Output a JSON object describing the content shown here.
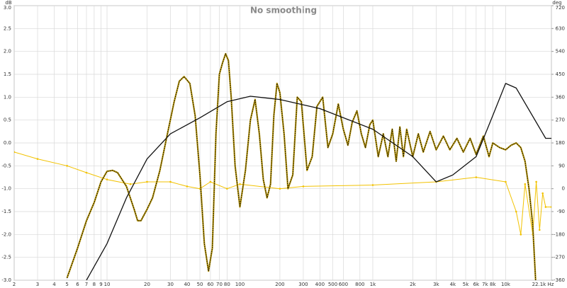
{
  "chart_data": {
    "type": "line",
    "title": "No smoothing",
    "ylabel": "dB",
    "y2label": "deg",
    "xscale": "log",
    "grid": true,
    "xlim": [
      2,
      22100
    ],
    "ylim": [
      -3,
      3
    ],
    "y2lim": [
      -360,
      720
    ],
    "xticks": [
      2,
      3,
      4,
      5,
      6,
      7,
      8,
      9,
      10,
      20,
      30,
      40,
      50,
      60,
      70,
      80,
      100,
      200,
      300,
      400,
      500,
      600,
      800,
      {
        "value": 1000,
        "label": "1k"
      },
      {
        "value": 2000,
        "label": "2k"
      },
      {
        "value": 3000,
        "label": "3k"
      },
      {
        "value": 4000,
        "label": "4k"
      },
      {
        "value": 5000,
        "label": "5k"
      },
      {
        "value": 6000,
        "label": "6k"
      },
      {
        "value": 7000,
        "label": "7k"
      },
      {
        "value": 8000,
        "label": "8k"
      },
      {
        "value": 10000,
        "label": "10k"
      },
      {
        "value": 22100,
        "label": "22.1k Hz"
      }
    ],
    "yticks": [
      {
        "value": -3,
        "label": "-3.0"
      },
      -2.5,
      {
        "value": -2,
        "label": "-2.0"
      },
      -1.5,
      {
        "value": -1,
        "label": "-1.0"
      },
      -0.5,
      {
        "value": 0,
        "label": "0.0"
      },
      0.5,
      {
        "value": 1,
        "label": "1.0"
      },
      1.5,
      {
        "value": 2,
        "label": "2.0"
      },
      2.5,
      {
        "value": 3,
        "label": "3.0"
      }
    ],
    "y2ticks": [
      -360,
      -270,
      -180,
      -90,
      0,
      90,
      180,
      270,
      360,
      450,
      540,
      630,
      720
    ],
    "series": [
      {
        "color": "#f2c200",
        "width": 1,
        "dots": true,
        "x": [
          2,
          3,
          5,
          7,
          10,
          15,
          20,
          30,
          40,
          50,
          60,
          80,
          100,
          200,
          300,
          1000,
          3000,
          6000,
          10000,
          12000,
          13000,
          14000,
          16000,
          17000,
          18000,
          19000,
          20000,
          22100
        ],
        "values": [
          -0.2,
          -0.35,
          -0.5,
          -0.65,
          -0.8,
          -0.9,
          -0.85,
          -0.85,
          -0.95,
          -1.0,
          -0.85,
          -1.0,
          -0.9,
          -1.0,
          -0.95,
          -0.92,
          -0.85,
          -0.75,
          -0.85,
          -1.5,
          -2.0,
          -0.9,
          -2.0,
          -0.85,
          -1.9,
          -1.1,
          -1.4,
          -1.4
        ]
      },
      {
        "color": "#b8960a",
        "width": 2.2,
        "overlay": "#000000",
        "x": [
          5,
          6,
          7,
          8,
          9,
          10,
          11,
          12,
          14,
          16,
          17,
          18,
          20,
          22,
          25,
          28,
          32,
          35,
          38,
          42,
          46,
          50,
          54,
          58,
          62,
          66,
          70,
          74,
          78,
          82,
          86,
          92,
          100,
          110,
          120,
          130,
          140,
          150,
          160,
          170,
          180,
          190,
          200,
          215,
          230,
          250,
          270,
          290,
          320,
          350,
          380,
          420,
          460,
          500,
          550,
          600,
          650,
          700,
          760,
          820,
          880,
          950,
          1000,
          1100,
          1200,
          1300,
          1400,
          1500,
          1600,
          1700,
          1800,
          2000,
          2200,
          2400,
          2700,
          3000,
          3400,
          3800,
          4300,
          4800,
          5400,
          6000,
          6800,
          7500,
          8000,
          9000,
          10000,
          11000,
          12000,
          13000,
          14000,
          15000,
          16000,
          16800
        ],
        "values": [
          -2.95,
          -2.3,
          -1.7,
          -1.3,
          -0.85,
          -0.62,
          -0.6,
          -0.65,
          -0.95,
          -1.45,
          -1.7,
          -1.7,
          -1.45,
          -1.2,
          -0.6,
          0.1,
          0.9,
          1.35,
          1.45,
          1.3,
          0.6,
          -0.7,
          -2.2,
          -2.8,
          -2.3,
          0.2,
          1.5,
          1.75,
          1.95,
          1.8,
          1.0,
          -0.5,
          -1.4,
          -0.6,
          0.5,
          0.95,
          0.2,
          -0.8,
          -1.2,
          -0.9,
          0.6,
          1.3,
          1.1,
          0.2,
          -1.0,
          -0.7,
          1.0,
          0.9,
          -0.6,
          -0.3,
          0.8,
          1.0,
          -0.1,
          0.2,
          0.85,
          0.3,
          -0.05,
          0.45,
          0.7,
          0.2,
          -0.1,
          0.4,
          0.5,
          -0.3,
          0.2,
          -0.3,
          0.3,
          -0.4,
          0.35,
          -0.3,
          0.3,
          -0.3,
          0.2,
          -0.2,
          0.25,
          -0.15,
          0.15,
          -0.15,
          0.1,
          -0.2,
          0.1,
          -0.25,
          0.15,
          -0.3,
          0.0,
          -0.1,
          -0.15,
          -0.05,
          0.0,
          -0.1,
          -0.4,
          -1.0,
          -1.8,
          -3.0
        ]
      },
      {
        "color": "#111111",
        "width": 1.3,
        "x": [
          7,
          10,
          14,
          20,
          30,
          50,
          80,
          120,
          200,
          400,
          1000,
          2000,
          3000,
          4000,
          6000,
          8000,
          10000,
          12000,
          20000,
          22100
        ],
        "values": [
          -3.0,
          -2.2,
          -1.2,
          -0.35,
          0.2,
          0.55,
          0.9,
          1.02,
          0.95,
          0.75,
          0.3,
          -0.3,
          -0.85,
          -0.7,
          -0.3,
          0.6,
          1.3,
          1.2,
          0.1,
          0.1
        ]
      }
    ]
  }
}
